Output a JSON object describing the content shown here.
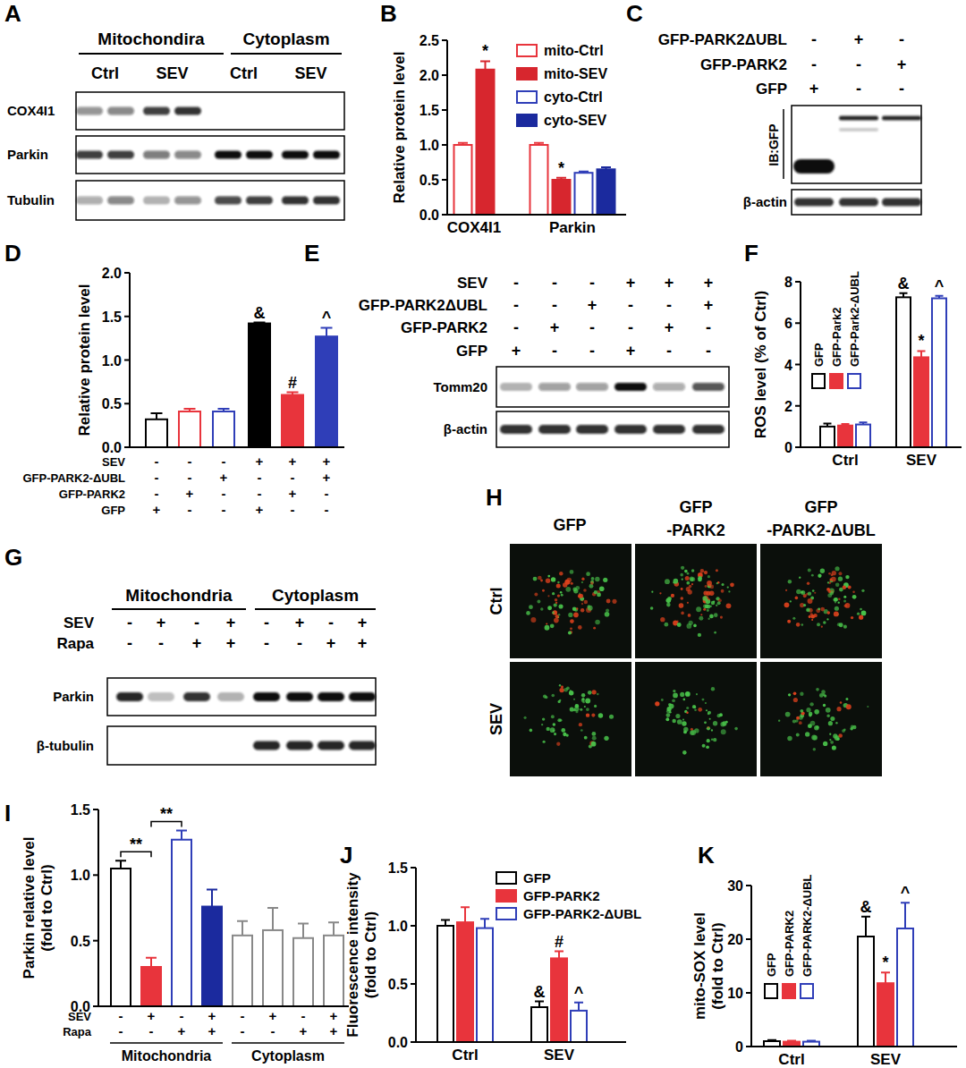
{
  "chart_data": [
    {
      "panel": "B",
      "type": "bar",
      "y_label": [
        "Relative protein level"
      ],
      "categories": [
        "COX4I1",
        "Parkin"
      ],
      "ylim": [
        0,
        2.5
      ],
      "yticks": [
        {
          "value": 0,
          "label": "0.0"
        },
        {
          "value": 0.5,
          "label": "0.5"
        },
        {
          "value": 1,
          "label": "1.0"
        },
        {
          "value": 1.5,
          "label": "1.5"
        },
        {
          "value": 2,
          "label": "2.0"
        },
        {
          "value": 2.5,
          "label": "2.5"
        }
      ],
      "legend": "upper right",
      "series": [
        {
          "name": "mito-Ctrl",
          "color": "#e8343c",
          "marker": "hollow",
          "values": [
            1.0,
            1.0
          ],
          "errors": [
            0.03,
            0.03
          ],
          "significance": [
            null,
            null
          ]
        },
        {
          "name": "mito-SEV",
          "color": "#d7262e",
          "marker": "solid",
          "values": [
            2.08,
            0.5
          ],
          "errors": [
            0.12,
            0.03
          ],
          "significance": [
            "*",
            "*"
          ]
        },
        {
          "name": "cyto-Ctrl",
          "color": "#2f3eb8",
          "marker": "hollow",
          "values": [
            null,
            0.6
          ],
          "errors": [
            null,
            0.02
          ],
          "significance": [
            null,
            null
          ]
        },
        {
          "name": "cyto-SEV",
          "color": "#1b2a9e",
          "marker": "solid",
          "values": [
            null,
            0.65
          ],
          "errors": [
            null,
            0.03
          ],
          "significance": [
            null,
            null
          ]
        }
      ]
    },
    {
      "panel": "D",
      "type": "bar",
      "y_label": [
        "Relative protein level"
      ],
      "categories": [
        null,
        null,
        null,
        null,
        null,
        null
      ],
      "ylim": [
        0,
        2
      ],
      "yticks": [
        {
          "value": 0,
          "label": "0.0"
        },
        {
          "value": 0.5,
          "label": "0.5"
        },
        {
          "value": 1,
          "label": "1.0"
        },
        {
          "value": 1.5,
          "label": "1.5"
        },
        {
          "value": 2,
          "label": "2.0"
        }
      ],
      "values": [
        0.32,
        0.41,
        0.41,
        1.42,
        0.6,
        1.27
      ],
      "errors": [
        0.07,
        0.03,
        0.03,
        0.01,
        0.03,
        0.1
      ],
      "colors": [
        "#000000",
        "#e8343c",
        "#2f3eb8",
        "#000000",
        "#e8343c",
        "#2f3eb8"
      ],
      "marker": [
        "hollow",
        "hollow",
        "hollow",
        "solid",
        "solid",
        "solid"
      ],
      "significance": [
        null,
        null,
        null,
        "&",
        "#",
        "^"
      ],
      "conditions": [
        {
          "label": "SEV",
          "signs": [
            "-",
            "-",
            "-",
            "+",
            "+",
            "+"
          ]
        },
        {
          "label": "GFP-PARK2-ΔUBL",
          "signs": [
            "-",
            "-",
            "+",
            "-",
            "-",
            "+"
          ]
        },
        {
          "label": "GFP-PARK2",
          "signs": [
            "-",
            "+",
            "-",
            "-",
            "+",
            "-"
          ]
        },
        {
          "label": "GFP",
          "signs": [
            "+",
            "-",
            "-",
            "+",
            "-",
            "-"
          ]
        }
      ]
    },
    {
      "panel": "F",
      "type": "bar",
      "y_label": [
        "ROS level (% of Ctrl)"
      ],
      "categories": [
        "Ctrl",
        "SEV"
      ],
      "ylim": [
        0,
        8
      ],
      "yticks": [
        0,
        2,
        4,
        6,
        8
      ],
      "legend": "upper left",
      "series": [
        {
          "name": "GFP",
          "color": "#000000",
          "marker": "hollow",
          "values": [
            1.0,
            7.25
          ],
          "errors": [
            0.15,
            0.2
          ],
          "significance": [
            null,
            "&"
          ]
        },
        {
          "name": "GFP-Park2",
          "color": "#e8343c",
          "marker": "solid",
          "values": [
            1.05,
            4.35
          ],
          "errors": [
            0.07,
            0.3
          ],
          "significance": [
            null,
            "*"
          ]
        },
        {
          "name": "GFP-Park2-ΔUBL",
          "color": "#2f3eb8",
          "marker": "hollow",
          "values": [
            1.1,
            7.2
          ],
          "errors": [
            0.1,
            0.12
          ],
          "significance": [
            null,
            "^"
          ]
        }
      ]
    },
    {
      "panel": "I",
      "type": "bar",
      "y_label": [
        "Parkin relative level",
        "(fold to Ctrl)"
      ],
      "categories": [
        null,
        null,
        null,
        null,
        null,
        null,
        null,
        null
      ],
      "ylim": [
        0,
        1.5
      ],
      "yticks": [
        {
          "value": 0,
          "label": "0.0"
        },
        {
          "value": 0.5,
          "label": "0.5"
        },
        {
          "value": 1,
          "label": "1.0"
        },
        {
          "value": 1.5,
          "label": "1.5"
        }
      ],
      "values": [
        1.05,
        0.3,
        1.27,
        0.76,
        0.54,
        0.58,
        0.52,
        0.54
      ],
      "errors": [
        0.06,
        0.07,
        0.07,
        0.13,
        0.11,
        0.17,
        0.11,
        0.1
      ],
      "colors": [
        "#000000",
        "#e8343c",
        "#2f3eb8",
        "#1b2a9e",
        "#888888",
        "#888888",
        "#888888",
        "#888888"
      ],
      "marker": [
        "hollow",
        "solid",
        "hollow",
        "solid",
        "hollow",
        "hollow",
        "hollow",
        "hollow"
      ],
      "brackets": [
        {
          "text": "**",
          "from": 0,
          "to": 1
        },
        {
          "text": "**",
          "from": 1,
          "to": 2
        }
      ],
      "conditions": [
        {
          "label": "SEV",
          "signs": [
            "-",
            "+",
            "-",
            "+",
            "-",
            "+",
            "-",
            "+"
          ]
        },
        {
          "label": "Rapa",
          "signs": [
            "-",
            "-",
            "+",
            "+",
            "-",
            "-",
            "+",
            "+"
          ]
        }
      ],
      "groups": [
        {
          "label": "Mitochondria",
          "from": 0,
          "to": 3
        },
        {
          "label": "Cytoplasm",
          "from": 4,
          "to": 7
        }
      ]
    },
    {
      "panel": "J",
      "type": "bar",
      "y_label": [
        "Fluorescence intensity",
        "(fold to Ctrl)"
      ],
      "categories": [
        "Ctrl",
        "SEV"
      ],
      "ylim": [
        0,
        1.5
      ],
      "yticks": [
        {
          "value": 0,
          "label": "0.0"
        },
        {
          "value": 0.5,
          "label": "0.5"
        },
        {
          "value": 1,
          "label": "1.0"
        },
        {
          "value": 1.5,
          "label": "1.5"
        }
      ],
      "legend": "upper right",
      "series": [
        {
          "name": "GFP",
          "color": "#000000",
          "marker": "hollow",
          "values": [
            1.0,
            0.3
          ],
          "errors": [
            0.05,
            0.05
          ],
          "significance": [
            null,
            "&"
          ]
        },
        {
          "name": "GFP-PARK2",
          "color": "#e8343c",
          "marker": "solid",
          "values": [
            1.03,
            0.72
          ],
          "errors": [
            0.13,
            0.06
          ],
          "significance": [
            null,
            "#"
          ]
        },
        {
          "name": "GFP-PARK2-ΔUBL",
          "color": "#2f3eb8",
          "marker": "hollow",
          "values": [
            0.98,
            0.27
          ],
          "errors": [
            0.08,
            0.07
          ],
          "significance": [
            null,
            "^"
          ]
        }
      ]
    },
    {
      "panel": "K",
      "type": "bar",
      "y_label": [
        "mito-SOX level",
        "(fold to Ctrl)"
      ],
      "categories": [
        "Ctrl",
        "SEV"
      ],
      "ylim": [
        0,
        30
      ],
      "yticks": [
        0,
        10,
        20,
        30
      ],
      "legend": "upper left",
      "series": [
        {
          "name": "GFP",
          "color": "#000000",
          "marker": "hollow",
          "values": [
            1.0,
            20.5
          ],
          "errors": [
            0.2,
            3.7
          ],
          "significance": [
            null,
            "&"
          ]
        },
        {
          "name": "GFP-PARK2",
          "color": "#e8343c",
          "marker": "solid",
          "values": [
            0.9,
            11.8
          ],
          "errors": [
            0.2,
            2.0
          ],
          "significance": [
            null,
            "*"
          ]
        },
        {
          "name": "GFP-PARK2-ΔUBL",
          "color": "#2f3eb8",
          "marker": "hollow",
          "values": [
            0.9,
            22
          ],
          "errors": [
            0.2,
            4.8
          ],
          "significance": [
            null,
            "^"
          ]
        }
      ]
    }
  ],
  "figure": {
    "A": {
      "panel": "A",
      "column_groups": [
        {
          "label": "Mitochondira",
          "columns": [
            "Ctrl",
            "SEV"
          ]
        },
        {
          "label": "Cytoplasm",
          "columns": [
            "Ctrl",
            "SEV"
          ]
        }
      ],
      "rows": [
        "COX4I1",
        "Parkin",
        "Tubulin"
      ]
    },
    "C": {
      "panel": "C",
      "conditions": [
        {
          "label": "GFP-PARK2ΔUBL",
          "signs": [
            "-",
            "+",
            "-"
          ]
        },
        {
          "label": "GFP-PARK2",
          "signs": [
            "-",
            "-",
            "+"
          ]
        },
        {
          "label": "GFP",
          "signs": [
            "+",
            "-",
            "-"
          ]
        }
      ],
      "antibody": "IB:GFP",
      "rows": [
        "β-actin"
      ]
    },
    "E": {
      "panel": "E",
      "conditions": [
        {
          "label": "SEV",
          "signs": [
            "-",
            "-",
            "-",
            "+",
            "+",
            "+"
          ]
        },
        {
          "label": "GFP-PARK2ΔUBL",
          "signs": [
            "-",
            "-",
            "+",
            "-",
            "-",
            "+"
          ]
        },
        {
          "label": "GFP-PARK2",
          "signs": [
            "-",
            "+",
            "-",
            "-",
            "+",
            "-"
          ]
        },
        {
          "label": "GFP",
          "signs": [
            "+",
            "-",
            "-",
            "+",
            "-",
            "-"
          ]
        }
      ],
      "rows": [
        "Tomm20",
        "β-actin"
      ]
    },
    "G": {
      "panel": "G",
      "column_groups": [
        {
          "label": "Mitochondria"
        },
        {
          "label": "Cytoplasm"
        }
      ],
      "conditions": [
        {
          "label": "SEV",
          "signs": [
            "-",
            "+",
            "-",
            "+",
            "-",
            "+",
            "-",
            "+"
          ]
        },
        {
          "label": "Rapa",
          "signs": [
            "-",
            "-",
            "+",
            "+",
            "-",
            "-",
            "+",
            "+"
          ]
        }
      ],
      "rows": [
        "Parkin",
        "β-tubulin"
      ]
    },
    "H": {
      "panel": "H",
      "columns": [
        [
          "GFP"
        ],
        [
          "GFP",
          "-PARK2"
        ],
        [
          "GFP",
          "-PARK2-ΔUBL"
        ]
      ],
      "rows": [
        "Ctrl",
        "SEV"
      ]
    }
  }
}
